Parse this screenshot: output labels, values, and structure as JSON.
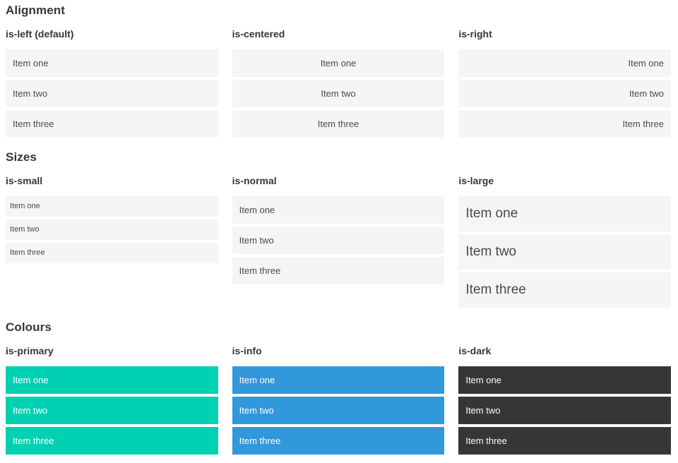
{
  "sections": [
    {
      "title": "Alignment",
      "columns": [
        {
          "subtitle": "is-left (default)",
          "variant": "is-left",
          "items": [
            "Item one",
            "Item two",
            "Item three"
          ]
        },
        {
          "subtitle": "is-centered",
          "variant": "is-centered",
          "items": [
            "Item one",
            "Item two",
            "Item three"
          ]
        },
        {
          "subtitle": "is-right",
          "variant": "is-right",
          "items": [
            "Item one",
            "Item two",
            "Item three"
          ]
        }
      ]
    },
    {
      "title": "Sizes",
      "columns": [
        {
          "subtitle": "is-small",
          "variant": "is-small",
          "items": [
            "Item one",
            "Item two",
            "Item three"
          ]
        },
        {
          "subtitle": "is-normal",
          "variant": "is-normal",
          "items": [
            "Item one",
            "Item two",
            "Item three"
          ]
        },
        {
          "subtitle": "is-large",
          "variant": "is-large",
          "items": [
            "Item one",
            "Item two",
            "Item three"
          ]
        }
      ]
    },
    {
      "title": "Colours",
      "columns": [
        {
          "subtitle": "is-primary",
          "variant": "is-primary",
          "items": [
            "Item one",
            "Item two",
            "Item three"
          ]
        },
        {
          "subtitle": "is-info",
          "variant": "is-info",
          "items": [
            "Item one",
            "Item two",
            "Item three"
          ]
        },
        {
          "subtitle": "is-dark",
          "variant": "is-dark",
          "items": [
            "Item one",
            "Item two",
            "Item three"
          ]
        }
      ]
    }
  ],
  "colors": {
    "primary": "#00d1b2",
    "info": "#3298dc",
    "dark": "#363636",
    "item_background": "#f5f5f5",
    "item_text": "#4a4a4a",
    "heading_text": "#363636",
    "colored_item_text": "#ffffff"
  }
}
